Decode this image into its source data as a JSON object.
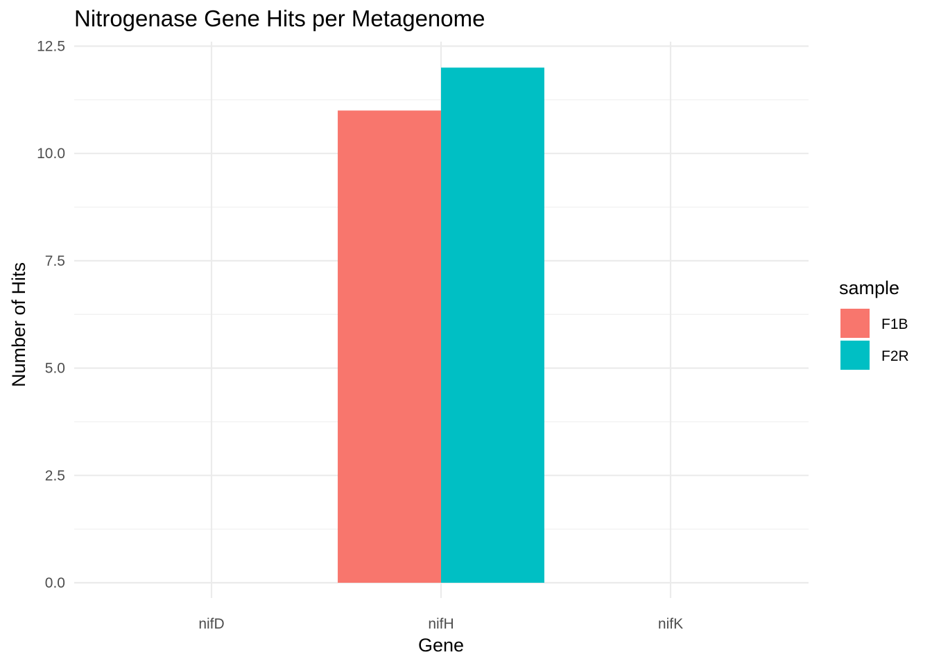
{
  "chart_data": {
    "type": "bar",
    "title": "Nitrogenase Gene Hits per Metagenome",
    "xlabel": "Gene",
    "ylabel": "Number of Hits",
    "categories": [
      "nifD",
      "nifH",
      "nifK"
    ],
    "series": [
      {
        "name": "F1B",
        "color": "#F8766D",
        "values": [
          0,
          11,
          0
        ]
      },
      {
        "name": "F2R",
        "color": "#00BFC4",
        "values": [
          0,
          12,
          0
        ]
      }
    ],
    "ylim": [
      0,
      12.5
    ],
    "yticks": [
      "0.0",
      "2.5",
      "5.0",
      "7.5",
      "10.0",
      "12.5"
    ],
    "grid": true,
    "legend": {
      "title": "sample",
      "position": "right"
    }
  }
}
